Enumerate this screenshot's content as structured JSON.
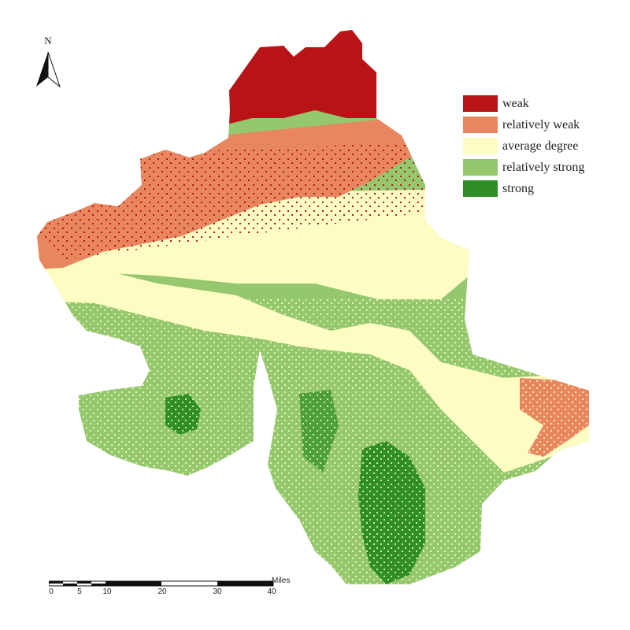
{
  "map": {
    "north_label": "N",
    "legend": [
      {
        "label": "weak",
        "color": "#b81418"
      },
      {
        "label": "relatively weak",
        "color": "#e8875f"
      },
      {
        "label": "average degree",
        "color": "#fdfdc3"
      },
      {
        "label": "relatively strong",
        "color": "#95c76e"
      },
      {
        "label": "strong",
        "color": "#2f8f26"
      }
    ],
    "scale": {
      "unit": "Miles",
      "ticks": [
        "0",
        "5",
        "10",
        "20",
        "30",
        "40"
      ]
    }
  }
}
